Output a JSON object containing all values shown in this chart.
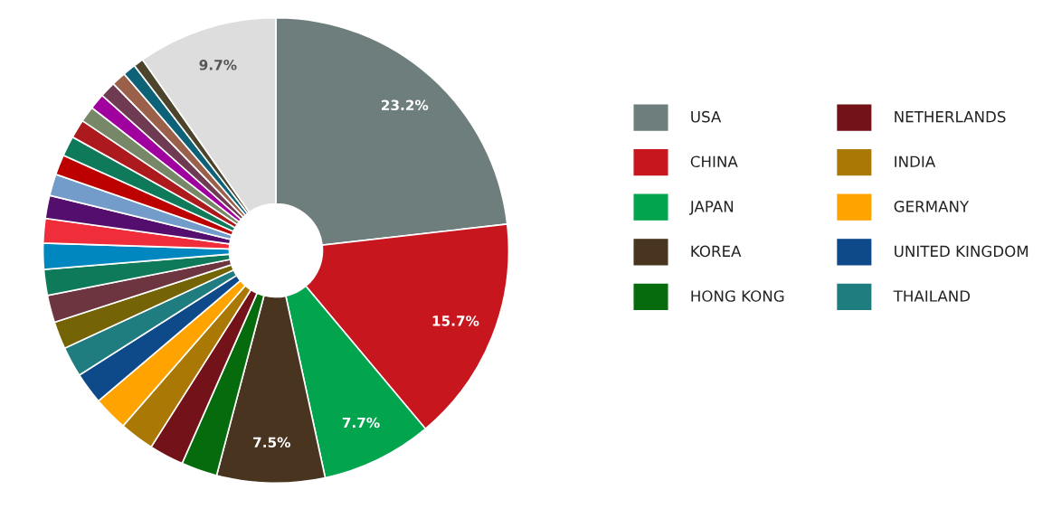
{
  "chart_data": {
    "type": "donut",
    "categories": [
      "USA",
      "CHINA",
      "JAPAN",
      "KOREA",
      "HONG KONG",
      "NETHERLANDS",
      "INDIA",
      "GERMANY",
      "UNITED KINGDOM",
      "THAILAND",
      null,
      null,
      null,
      null,
      null,
      null,
      null,
      null,
      null,
      null,
      null,
      null,
      null,
      null,
      null,
      null,
      null
    ],
    "values": [
      23.2,
      15.7,
      7.7,
      7.5,
      2.5,
      2.4,
      2.4,
      2.4,
      2.2,
      2.1,
      1.9,
      1.9,
      1.8,
      1.8,
      1.7,
      1.6,
      1.5,
      1.4,
      1.4,
      1.3,
      1.1,
      1.1,
      1.1,
      1.0,
      0.9,
      0.7,
      9.7
    ],
    "colors": [
      "#6e7e7c",
      "#c8161f",
      "#02a44e",
      "#48341f",
      "#066b0c",
      "#731219",
      "#aa7805",
      "#ffa300",
      "#0e4a8a",
      "#1f7d80",
      "#746405",
      "#6d3540",
      "#0f7a5a",
      "#0087bf",
      "#ef2d3b",
      "#540f6e",
      "#739ccb",
      "#bc0000",
      "#0f7a5a",
      "#ad1a1e",
      "#778868",
      "#a0009e",
      "#6f3b52",
      "#9a604a",
      "#0e6277",
      "#4d442c",
      "#dddddd"
    ],
    "value_labels": [
      "23.2%",
      "15.7%",
      "7.7%",
      "7.5%",
      null,
      null,
      null,
      null,
      null,
      null,
      null,
      null,
      null,
      null,
      null,
      null,
      null,
      null,
      null,
      null,
      null,
      null,
      null,
      null,
      null,
      null,
      "9.7%"
    ],
    "legend": "right"
  }
}
